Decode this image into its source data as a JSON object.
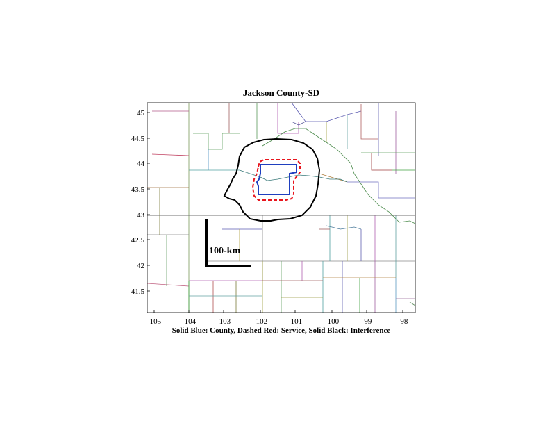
{
  "title": "Jackson County-SD",
  "caption": "Solid Blue: County, Dashed Red: Service, Solid Black: Interference",
  "scale_bar_label": "100-km",
  "axes": {
    "x_ticks": [
      "-105",
      "-104",
      "-103",
      "-102",
      "-101",
      "-100",
      "-99",
      "-98"
    ],
    "y_ticks": [
      "45",
      "44.5",
      "44",
      "43.5",
      "43",
      "42.5",
      "42",
      "41.5"
    ]
  },
  "colors": {
    "county": "#1f3fbf",
    "service": "#e8141c",
    "interference": "#000000"
  }
}
